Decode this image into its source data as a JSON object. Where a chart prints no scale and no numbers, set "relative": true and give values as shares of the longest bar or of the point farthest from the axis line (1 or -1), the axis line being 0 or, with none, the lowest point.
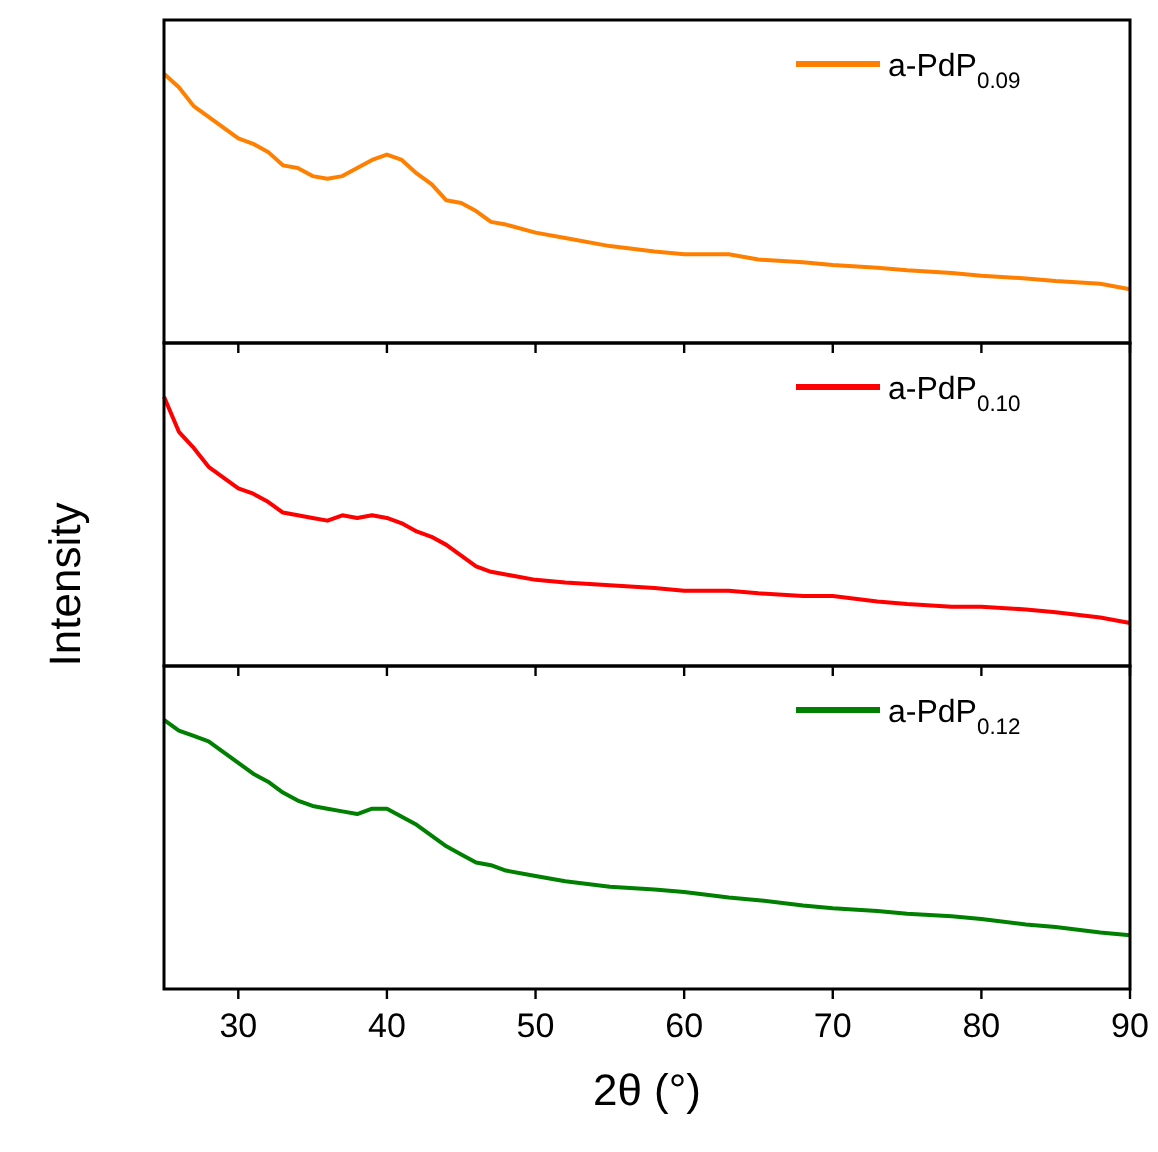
{
  "chart_data": [
    {
      "type": "line",
      "relative": true,
      "xlim": [
        25,
        90
      ],
      "xticks": [
        30,
        40,
        50,
        60,
        70,
        80,
        90
      ],
      "tick_labels": false,
      "legend": "top right",
      "x": [
        25,
        26,
        27,
        28,
        29,
        30,
        31,
        32,
        33,
        34,
        35,
        36,
        37,
        38,
        39,
        40,
        41,
        42,
        43,
        44,
        45,
        46,
        47,
        48,
        50,
        52,
        55,
        58,
        60,
        63,
        65,
        68,
        70,
        73,
        75,
        78,
        80,
        83,
        85,
        88,
        90
      ],
      "series": [
        {
          "name": "a-PdP$_{0.09}$",
          "color": "#ff8000",
          "values": [
            1,
            0.95,
            0.88,
            0.84,
            0.8,
            0.76,
            0.74,
            0.71,
            0.66,
            0.65,
            0.62,
            0.61,
            0.62,
            0.65,
            0.68,
            0.7,
            0.68,
            0.63,
            0.59,
            0.53,
            0.52,
            0.49,
            0.45,
            0.44,
            0.41,
            0.39,
            0.36,
            0.34,
            0.33,
            0.33,
            0.31,
            0.3,
            0.29,
            0.28,
            0.27,
            0.26,
            0.25,
            0.24,
            0.23,
            0.22,
            0.2
          ]
        }
      ]
    },
    {
      "type": "line",
      "relative": true,
      "xlim": [
        25,
        90
      ],
      "xticks": [
        30,
        40,
        50,
        60,
        70,
        80,
        90
      ],
      "tick_labels": false,
      "legend": "top right",
      "ylabel": "Intensity",
      "x": [
        25,
        26,
        27,
        28,
        29,
        30,
        31,
        32,
        33,
        34,
        35,
        36,
        37,
        38,
        39,
        40,
        41,
        42,
        43,
        44,
        45,
        46,
        47,
        48,
        50,
        52,
        55,
        58,
        60,
        63,
        65,
        68,
        70,
        73,
        75,
        78,
        80,
        83,
        85,
        88,
        90
      ],
      "series": [
        {
          "name": "a-PdP$_{0.10}$",
          "color": "#ff0000",
          "values": [
            1,
            0.87,
            0.81,
            0.74,
            0.7,
            0.66,
            0.64,
            0.61,
            0.57,
            0.56,
            0.55,
            0.54,
            0.56,
            0.55,
            0.56,
            0.55,
            0.53,
            0.5,
            0.48,
            0.45,
            0.41,
            0.37,
            0.35,
            0.34,
            0.32,
            0.31,
            0.3,
            0.29,
            0.28,
            0.28,
            0.27,
            0.26,
            0.26,
            0.24,
            0.23,
            0.22,
            0.22,
            0.21,
            0.2,
            0.18,
            0.16
          ]
        }
      ]
    },
    {
      "type": "line",
      "relative": true,
      "xlim": [
        25,
        90
      ],
      "xticks": [
        30,
        40,
        50,
        60,
        70,
        80,
        90
      ],
      "tick_labels": "x",
      "legend": "top right",
      "xlabel": "2θ (°)",
      "x": [
        25,
        26,
        27,
        28,
        29,
        30,
        31,
        32,
        33,
        34,
        35,
        36,
        37,
        38,
        39,
        40,
        41,
        42,
        43,
        44,
        45,
        46,
        47,
        48,
        50,
        52,
        55,
        58,
        60,
        63,
        65,
        68,
        70,
        73,
        75,
        78,
        80,
        83,
        85,
        88,
        90
      ],
      "series": [
        {
          "name": "a-PdP$_{0.12}$",
          "color": "#008000",
          "values": [
            1,
            0.96,
            0.94,
            0.92,
            0.88,
            0.84,
            0.8,
            0.77,
            0.73,
            0.7,
            0.68,
            0.67,
            0.66,
            0.65,
            0.67,
            0.67,
            0.64,
            0.61,
            0.57,
            0.53,
            0.5,
            0.47,
            0.46,
            0.44,
            0.42,
            0.4,
            0.38,
            0.37,
            0.36,
            0.34,
            0.33,
            0.31,
            0.3,
            0.29,
            0.28,
            0.27,
            0.26,
            0.24,
            0.23,
            0.21,
            0.2
          ]
        }
      ]
    }
  ]
}
